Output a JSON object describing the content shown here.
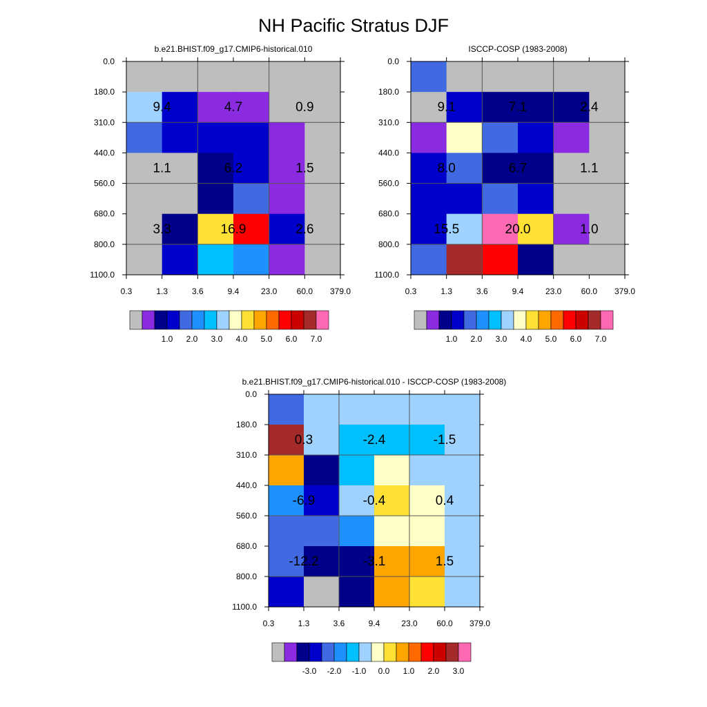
{
  "title": "NH Pacific Stratus DJF",
  "palettes": {
    "abs": [
      "#bebebe",
      "#8a2be2",
      "#00008b",
      "#0000cd",
      "#4169e1",
      "#1e90ff",
      "#00bfff",
      "#a0d2ff",
      "#ffffc8",
      "#ffe135",
      "#ffa500",
      "#ff6a00",
      "#ff0000",
      "#cd0000",
      "#a52a2a",
      "#ff69b4"
    ],
    "diff": [
      "#bebebe",
      "#8a2be2",
      "#00008b",
      "#0000cd",
      "#4169e1",
      "#1e90ff",
      "#00bfff",
      "#a0d2ff",
      "#ffffc8",
      "#ffe135",
      "#ffa500",
      "#ff6a00",
      "#ff0000",
      "#cd0000",
      "#a52a2a",
      "#ff69b4"
    ]
  },
  "chart_data": [
    {
      "type": "heatmap",
      "title": "b.e21.BHIST.f09_g17.CMIP6-historical.010",
      "x_ticks": [
        "0.3",
        "1.3",
        "3.6",
        "9.4",
        "23.0",
        "60.0",
        "379.0"
      ],
      "y_ticks": [
        "0.0",
        "180.0",
        "310.0",
        "440.0",
        "560.0",
        "680.0",
        "800.0",
        "1100.0"
      ],
      "palette": "abs",
      "colorbar_labels": [
        "1.0",
        "2.0",
        "3.0",
        "4.0",
        "5.0",
        "6.0",
        "7.0"
      ],
      "cell_color_index": [
        [
          0,
          0,
          0,
          0,
          0,
          0
        ],
        [
          7,
          3,
          1,
          1,
          0,
          0
        ],
        [
          4,
          3,
          3,
          3,
          1,
          0
        ],
        [
          0,
          0,
          2,
          3,
          1,
          0
        ],
        [
          0,
          0,
          2,
          4,
          1,
          0
        ],
        [
          0,
          2,
          9,
          12,
          3,
          0
        ],
        [
          0,
          3,
          6,
          5,
          1,
          0
        ]
      ],
      "box_labels": [
        [
          "9.4",
          "4.7",
          "0.9"
        ],
        [
          "1.1",
          "6.2",
          "1.5"
        ],
        [
          "3.3",
          "16.9",
          "2.6"
        ]
      ]
    },
    {
      "type": "heatmap",
      "title": "ISCCP-COSP (1983-2008)",
      "x_ticks": [
        "0.3",
        "1.3",
        "3.6",
        "9.4",
        "23.0",
        "60.0",
        "379.0"
      ],
      "y_ticks": [
        "0.0",
        "180.0",
        "310.0",
        "440.0",
        "560.0",
        "680.0",
        "800.0",
        "1100.0"
      ],
      "palette": "abs",
      "colorbar_labels": [
        "1.0",
        "2.0",
        "3.0",
        "4.0",
        "5.0",
        "6.0",
        "7.0"
      ],
      "cell_color_index": [
        [
          4,
          0,
          0,
          0,
          0,
          0
        ],
        [
          0,
          3,
          2,
          2,
          2,
          0
        ],
        [
          1,
          8,
          4,
          3,
          1,
          0
        ],
        [
          3,
          4,
          2,
          2,
          0,
          0
        ],
        [
          3,
          3,
          4,
          3,
          0,
          0
        ],
        [
          3,
          7,
          15,
          9,
          1,
          0
        ],
        [
          4,
          14,
          12,
          2,
          0,
          0
        ]
      ],
      "box_labels": [
        [
          "9.1",
          "7.1",
          "2.4"
        ],
        [
          "8.0",
          "6.7",
          "1.1"
        ],
        [
          "15.5",
          "20.0",
          "1.0"
        ]
      ]
    },
    {
      "type": "heatmap",
      "title": "b.e21.BHIST.f09_g17.CMIP6-historical.010 - ISCCP-COSP (1983-2008)",
      "x_ticks": [
        "0.3",
        "1.3",
        "3.6",
        "9.4",
        "23.0",
        "60.0",
        "379.0"
      ],
      "y_ticks": [
        "0.0",
        "180.0",
        "310.0",
        "440.0",
        "560.0",
        "680.0",
        "800.0",
        "1100.0"
      ],
      "palette": "diff",
      "colorbar_labels": [
        "-3.0",
        "-2.0",
        "-1.0",
        "0.0",
        "1.0",
        "2.0",
        "3.0"
      ],
      "cell_color_index": [
        [
          4,
          7,
          7,
          7,
          7,
          7
        ],
        [
          14,
          7,
          6,
          6,
          6,
          7
        ],
        [
          10,
          2,
          6,
          8,
          7,
          7
        ],
        [
          5,
          3,
          7,
          9,
          8,
          7
        ],
        [
          4,
          4,
          5,
          8,
          8,
          7
        ],
        [
          4,
          2,
          2,
          10,
          10,
          7
        ],
        [
          3,
          0,
          2,
          10,
          9,
          7
        ]
      ],
      "box_labels": [
        [
          "0.3",
          "-2.4",
          "-1.5"
        ],
        [
          "-6.9",
          "-0.4",
          "0.4"
        ],
        [
          "-12.2",
          "-3.1",
          "1.5"
        ]
      ]
    }
  ]
}
